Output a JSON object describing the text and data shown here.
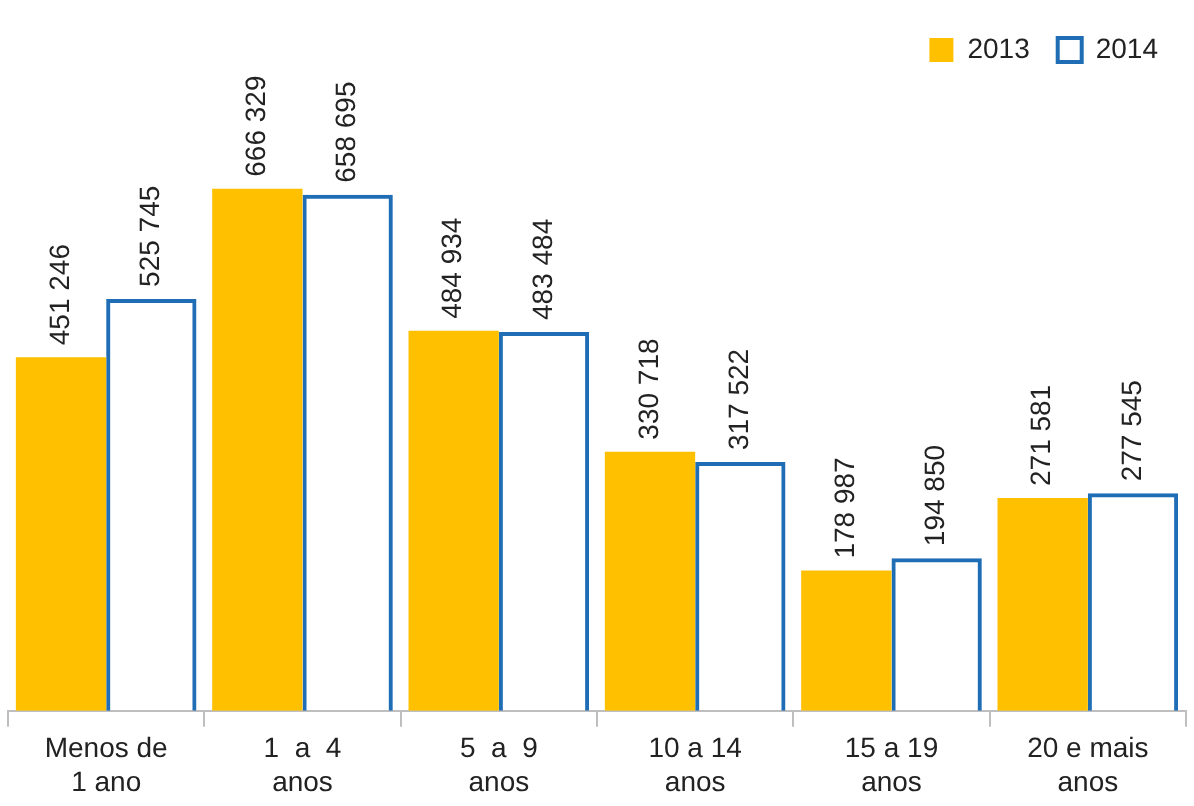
{
  "chart_data": {
    "type": "bar",
    "categories": [
      "Menos de\n1 ano",
      "1  a  4\nanos",
      "5  a  9\nanos",
      "10 a 14\nanos",
      "15 a 19\nanos",
      "20 e mais\nanos"
    ],
    "series": [
      {
        "name": "2013",
        "color": "#ffc000",
        "values": [
          451246,
          666329,
          484934,
          330718,
          178987,
          271581
        ],
        "value_labels": [
          "451 246",
          "666 329",
          "484 934",
          "330 718",
          "178 987",
          "271 581"
        ]
      },
      {
        "name": "2014",
        "color": "#1f6db5",
        "values": [
          525745,
          658695,
          483484,
          317522,
          194850,
          277545
        ],
        "value_labels": [
          "525 745",
          "658 695",
          "483 484",
          "317 522",
          "194 850",
          "277 545"
        ]
      }
    ],
    "legend": "top right",
    "grid": false
  }
}
